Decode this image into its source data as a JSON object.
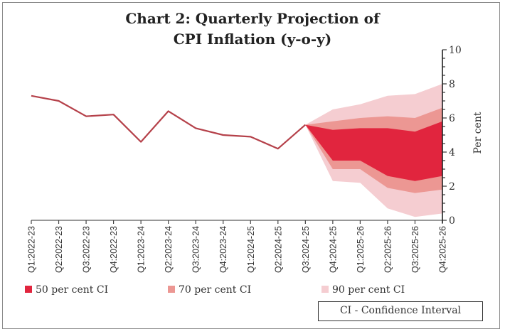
{
  "chart_data": {
    "type": "line",
    "title_line1": "Chart 2: Quarterly Projection of",
    "title_line2": "CPI Inflation (y-o-y)",
    "xlabel": "",
    "ylabel": "Per cent",
    "ylim": [
      0,
      10
    ],
    "yticks": [
      0,
      2,
      4,
      6,
      8,
      10
    ],
    "y_axis_side": "right",
    "grid": false,
    "categories": [
      "Q1:2022-23",
      "Q2:2022-23",
      "Q3:2022-23",
      "Q4:2022-23",
      "Q1:2023-24",
      "Q2:2023-24",
      "Q3:2023-24",
      "Q4:2023-24",
      "Q1:2024-25",
      "Q2:2024-25",
      "Q3:2024-25",
      "Q4:2024-25",
      "Q1:2025-26",
      "Q2:2025-26",
      "Q3:2025-26",
      "Q4:2025-26"
    ],
    "series": [
      {
        "name": "CPI Inflation (actual)",
        "color": "#b5414a",
        "values": [
          7.3,
          7.0,
          6.1,
          6.2,
          4.6,
          6.4,
          5.4,
          5.0,
          4.9,
          4.2,
          5.6,
          null,
          null,
          null,
          null,
          null
        ]
      }
    ],
    "fan": {
      "start_index": 10,
      "bands": [
        {
          "name": "90 per cent CI",
          "color": "#f5cdd1",
          "upper": [
            5.6,
            6.5,
            6.8,
            7.3,
            7.4,
            8.0
          ],
          "lower": [
            5.6,
            2.3,
            2.2,
            0.7,
            0.2,
            0.4
          ]
        },
        {
          "name": "70 per cent CI",
          "color": "#ec9793",
          "upper": [
            5.6,
            5.8,
            6.0,
            6.1,
            6.0,
            6.6
          ],
          "lower": [
            5.6,
            3.0,
            3.0,
            1.9,
            1.6,
            1.8
          ]
        },
        {
          "name": "50 per cent CI",
          "color": "#e1253e",
          "upper": [
            5.6,
            5.3,
            5.4,
            5.4,
            5.2,
            5.8
          ],
          "lower": [
            5.6,
            3.5,
            3.5,
            2.6,
            2.3,
            2.6
          ]
        }
      ]
    },
    "legend": [
      {
        "label": "50 per cent CI",
        "color": "#e1253e"
      },
      {
        "label": "70 per cent CI",
        "color": "#ec9793"
      },
      {
        "label": "90 per cent CI",
        "color": "#f5cdd1"
      }
    ],
    "legend_position": "bottom",
    "note": "CI - Confidence Interval"
  }
}
